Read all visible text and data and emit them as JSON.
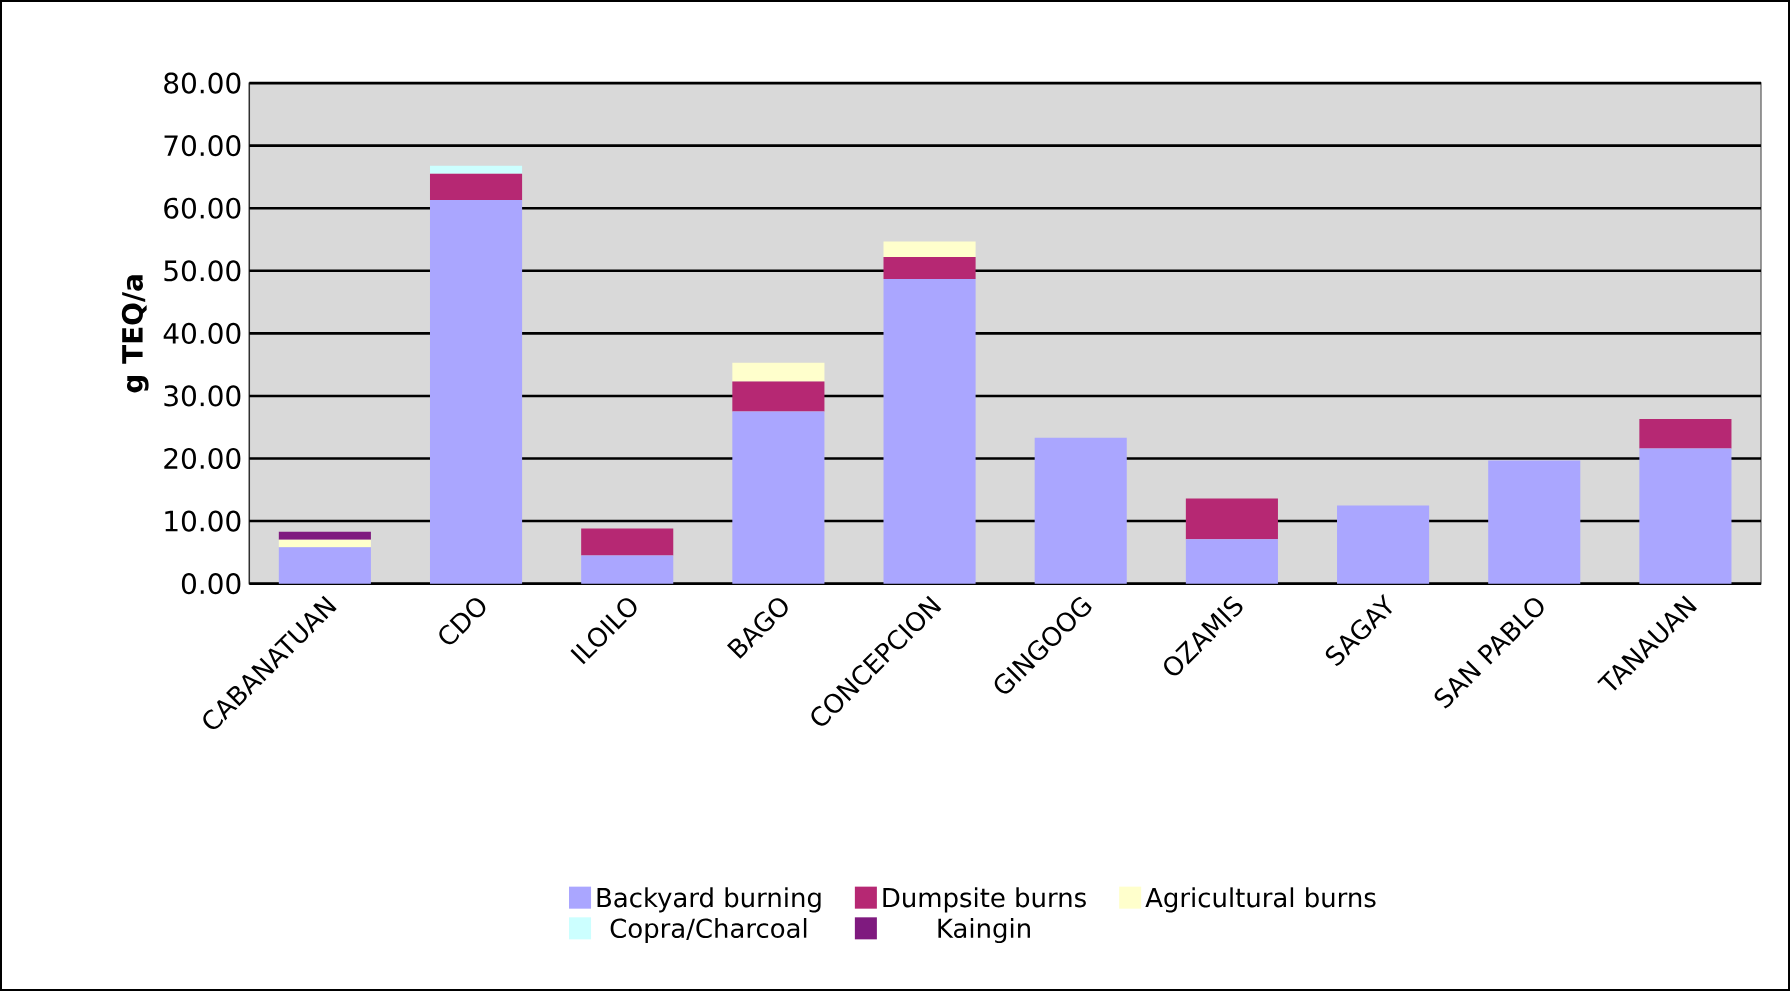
{
  "chart_data": {
    "type": "bar",
    "stacked": true,
    "ylabel": "g TEQ/a",
    "categories": [
      "CABANATUAN",
      "CDO",
      "ILOILO",
      "BAGO",
      "CONCEPCION",
      "GINGOOG",
      "OZAMIS",
      "SAGAY",
      "SAN PABLO",
      "TANAUAN"
    ],
    "series": [
      {
        "name": "Backyard burning",
        "color": "#aaa6ff",
        "values": [
          5.8,
          61.3,
          4.5,
          27.5,
          48.7,
          23.3,
          7.1,
          12.5,
          19.7,
          21.6
        ]
      },
      {
        "name": "Dumpsite burns",
        "color": "#b62873",
        "values": [
          null,
          4.2,
          4.3,
          4.8,
          3.5,
          null,
          6.5,
          null,
          null,
          4.7
        ]
      },
      {
        "name": "Agricultural burns",
        "color": "#ffffcc",
        "values": [
          1.2,
          null,
          null,
          3.0,
          2.5,
          null,
          null,
          null,
          null,
          null
        ]
      },
      {
        "name": "Copra/Charcoal",
        "color": "#ccffff",
        "values": [
          null,
          1.3,
          null,
          null,
          null,
          null,
          null,
          null,
          null,
          null
        ]
      },
      {
        "name": "Kaingin",
        "color": "#7f1a7f",
        "values": [
          1.3,
          null,
          null,
          null,
          null,
          null,
          null,
          null,
          null,
          null
        ]
      }
    ],
    "ylim": [
      0,
      80
    ],
    "yticks": [
      {
        "value": 0,
        "label": "0.00"
      },
      {
        "value": 10,
        "label": "10.00"
      },
      {
        "value": 20,
        "label": "20.00"
      },
      {
        "value": 30,
        "label": "30.00"
      },
      {
        "value": 40,
        "label": "40.00"
      },
      {
        "value": 50,
        "label": "50.00"
      },
      {
        "value": 60,
        "label": "60.00"
      },
      {
        "value": 70,
        "label": "70.00"
      },
      {
        "value": 80,
        "label": "80.00"
      }
    ],
    "grid": "y",
    "legend": "bottom"
  }
}
